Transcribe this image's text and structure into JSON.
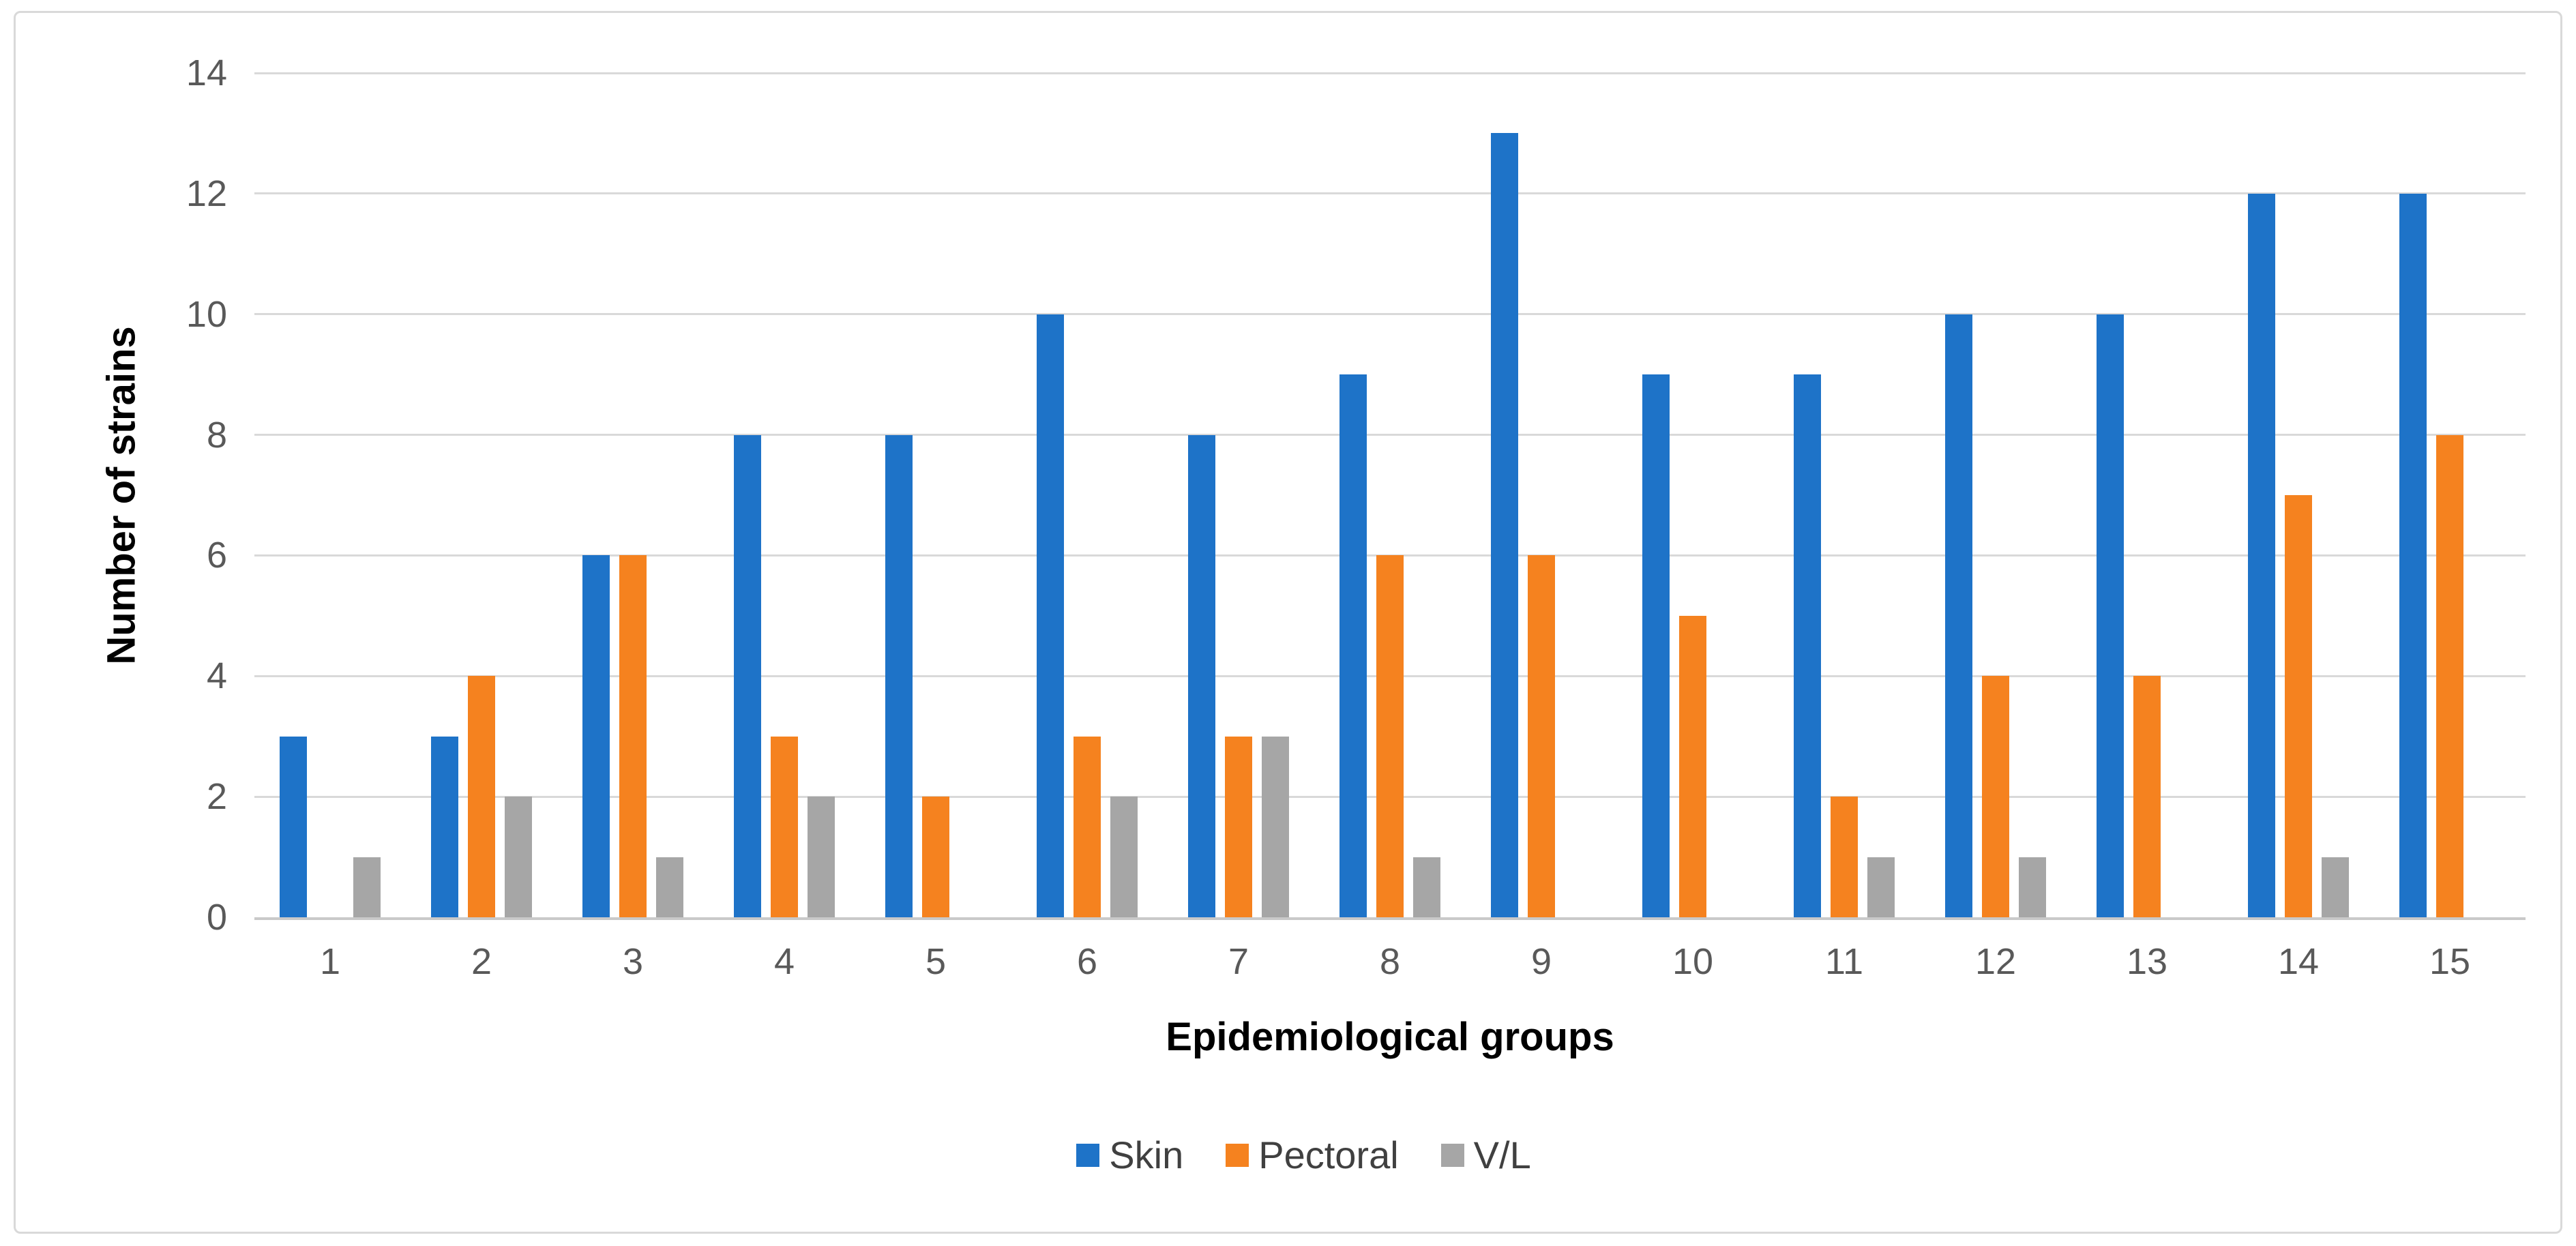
{
  "chart_data": {
    "type": "bar",
    "title": "",
    "categories": [
      "1",
      "2",
      "3",
      "4",
      "5",
      "6",
      "7",
      "8",
      "9",
      "10",
      "11",
      "12",
      "13",
      "14",
      "15"
    ],
    "series": [
      {
        "name": "Skin",
        "color": "#1E73C8",
        "values": [
          3,
          3,
          6,
          8,
          8,
          10,
          8,
          9,
          13,
          9,
          9,
          10,
          10,
          12,
          12
        ]
      },
      {
        "name": "Pectoral",
        "color": "#F5821F",
        "values": [
          0,
          4,
          6,
          3,
          2,
          3,
          3,
          6,
          6,
          5,
          2,
          4,
          4,
          7,
          8
        ]
      },
      {
        "name": "V/L",
        "color": "#A6A6A6",
        "values": [
          1,
          2,
          1,
          2,
          0,
          2,
          3,
          1,
          0,
          0,
          1,
          1,
          0,
          1,
          0
        ]
      }
    ],
    "xlabel": "Epidemiological groups",
    "ylabel": "Number of strains",
    "ylim": [
      0,
      14
    ],
    "yticks": [
      0,
      2,
      4,
      6,
      8,
      10,
      12,
      14
    ],
    "grid": true,
    "legend_position": "bottom"
  },
  "style_colors": {
    "gridline": "#D9D9D9",
    "axis_line": "#C9C9C9",
    "tick_text": "#595959",
    "legend_text": "#404040",
    "title_text": "#000000",
    "panel_border": "#D9D9D9",
    "background": "#FFFFFF"
  }
}
